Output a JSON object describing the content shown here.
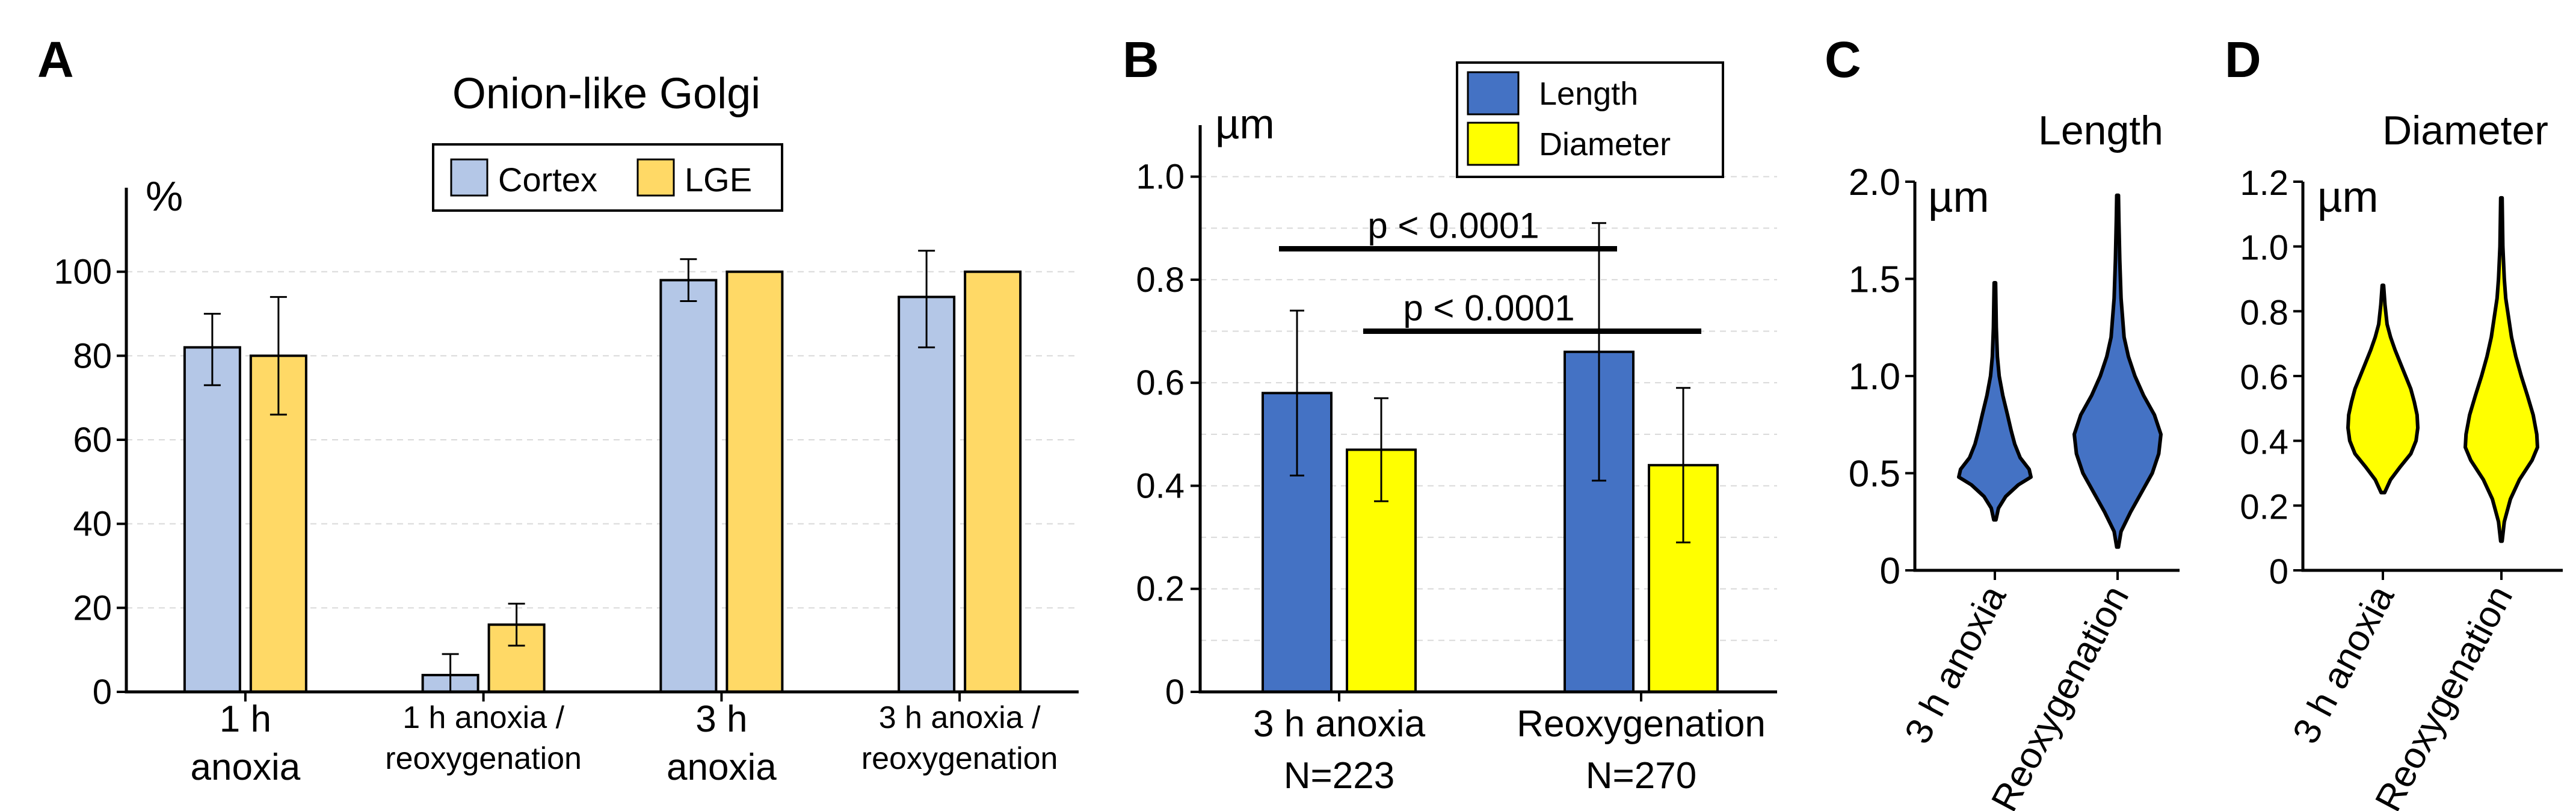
{
  "chart_data": [
    {
      "panel": "A",
      "type": "bar",
      "title": "Onion-like Golgi",
      "ylabel": "%",
      "ylim": [
        0,
        120
      ],
      "yticks": [
        0,
        20,
        40,
        60,
        80,
        100
      ],
      "grid": true,
      "legend_position": "top-center",
      "categories": [
        [
          "1 h",
          "anoxia"
        ],
        [
          "1 h anoxia /",
          "reoxygenation"
        ],
        [
          "3 h",
          "anoxia"
        ],
        [
          "3 h anoxia /",
          "reoxygenation"
        ]
      ],
      "series": [
        {
          "name": "Cortex",
          "color": "#b4c7e7",
          "values": [
            82,
            4,
            98,
            94
          ],
          "err_low": [
            73,
            0,
            93,
            82
          ],
          "err_high": [
            90,
            9,
            103,
            105
          ]
        },
        {
          "name": "LGE",
          "color": "#ffd966",
          "values": [
            80,
            16,
            100,
            100
          ],
          "err_low": [
            66,
            11,
            100,
            100
          ],
          "err_high": [
            94,
            21,
            100,
            100
          ]
        }
      ]
    },
    {
      "panel": "B",
      "type": "bar",
      "ylabel": "µm",
      "ylim": [
        0,
        1.1
      ],
      "yticks": [
        "0",
        "0.2",
        "0.4",
        "0.6",
        "0.8",
        "1.0"
      ],
      "grid": true,
      "legend_position": "top-right",
      "categories": [
        [
          "3 h anoxia",
          "N=223"
        ],
        [
          "Reoxygenation",
          "N=270"
        ]
      ],
      "series": [
        {
          "name": "Length",
          "color": "#4472c4",
          "values": [
            0.58,
            0.66
          ],
          "err_low": [
            0.42,
            0.41
          ],
          "err_high": [
            0.74,
            0.91
          ]
        },
        {
          "name": "Diameter",
          "color": "#ffff00",
          "values": [
            0.47,
            0.44
          ],
          "err_low": [
            0.37,
            0.29
          ],
          "err_high": [
            0.57,
            0.59
          ]
        }
      ],
      "annotations": [
        {
          "text": "p < 0.0001",
          "from": "3 h anoxia / Length",
          "to": "Reoxygenation / Length",
          "level": 0.86
        },
        {
          "text": "p < 0.0001",
          "from": "3 h anoxia / Diameter",
          "to": "Reoxygenation / Diameter",
          "level": 0.7
        }
      ]
    },
    {
      "panel": "C",
      "type": "violin",
      "title": "Length",
      "ylabel": "µm",
      "ylim": [
        0,
        2.0
      ],
      "yticks": [
        "0",
        "0.5",
        "1.0",
        "1.5",
        "2.0"
      ],
      "color": "#4472c4",
      "categories": [
        "3 h anoxia",
        "Reoxygenation"
      ],
      "violins": [
        {
          "profile": [
            [
              0.26,
              0.03
            ],
            [
              0.32,
              0.1
            ],
            [
              0.38,
              0.3
            ],
            [
              0.44,
              0.65
            ],
            [
              0.48,
              1.0
            ],
            [
              0.52,
              0.95
            ],
            [
              0.58,
              0.7
            ],
            [
              0.65,
              0.55
            ],
            [
              0.72,
              0.45
            ],
            [
              0.8,
              0.35
            ],
            [
              0.9,
              0.22
            ],
            [
              1.0,
              0.12
            ],
            [
              1.1,
              0.07
            ],
            [
              1.25,
              0.04
            ],
            [
              1.48,
              0.02
            ]
          ]
        },
        {
          "profile": [
            [
              0.12,
              0.02
            ],
            [
              0.2,
              0.08
            ],
            [
              0.3,
              0.3
            ],
            [
              0.4,
              0.55
            ],
            [
              0.5,
              0.8
            ],
            [
              0.6,
              0.95
            ],
            [
              0.7,
              1.0
            ],
            [
              0.8,
              0.85
            ],
            [
              0.9,
              0.6
            ],
            [
              1.0,
              0.4
            ],
            [
              1.1,
              0.25
            ],
            [
              1.2,
              0.15
            ],
            [
              1.4,
              0.08
            ],
            [
              1.6,
              0.05
            ],
            [
              1.8,
              0.03
            ],
            [
              1.93,
              0.02
            ]
          ]
        }
      ]
    },
    {
      "panel": "D",
      "type": "violin",
      "title": "Diameter",
      "ylabel": "µm",
      "ylim": [
        0,
        1.2
      ],
      "yticks": [
        "0",
        "0.2",
        "0.4",
        "0.6",
        "0.8",
        "1.0",
        "1.2"
      ],
      "color": "#ffff00",
      "categories": [
        "3 h anoxia",
        "Reoxygenation"
      ],
      "violins": [
        {
          "profile": [
            [
              0.24,
              0.05
            ],
            [
              0.28,
              0.22
            ],
            [
              0.32,
              0.5
            ],
            [
              0.36,
              0.8
            ],
            [
              0.4,
              0.95
            ],
            [
              0.44,
              1.0
            ],
            [
              0.48,
              0.98
            ],
            [
              0.52,
              0.9
            ],
            [
              0.56,
              0.8
            ],
            [
              0.6,
              0.65
            ],
            [
              0.64,
              0.5
            ],
            [
              0.68,
              0.35
            ],
            [
              0.72,
              0.22
            ],
            [
              0.76,
              0.12
            ],
            [
              0.82,
              0.06
            ],
            [
              0.88,
              0.02
            ]
          ]
        },
        {
          "profile": [
            [
              0.09,
              0.02
            ],
            [
              0.15,
              0.08
            ],
            [
              0.22,
              0.25
            ],
            [
              0.28,
              0.5
            ],
            [
              0.34,
              0.85
            ],
            [
              0.38,
              1.0
            ],
            [
              0.42,
              0.98
            ],
            [
              0.48,
              0.88
            ],
            [
              0.54,
              0.72
            ],
            [
              0.6,
              0.55
            ],
            [
              0.66,
              0.4
            ],
            [
              0.72,
              0.28
            ],
            [
              0.78,
              0.2
            ],
            [
              0.84,
              0.12
            ],
            [
              0.9,
              0.08
            ],
            [
              1.0,
              0.04
            ],
            [
              1.15,
              0.02
            ]
          ]
        }
      ]
    }
  ],
  "panel_labels": {
    "a": "A",
    "b": "B",
    "c": "C",
    "d": "D"
  },
  "bar_titles": {
    "a": "Onion-like Golgi"
  },
  "violin_titles": {
    "c": "Length",
    "d": "Diameter"
  },
  "units": {
    "a": "%",
    "b": "µm",
    "c": "µm",
    "d": "µm"
  },
  "p_labels": [
    "p < 0.0001",
    "p < 0.0001"
  ]
}
